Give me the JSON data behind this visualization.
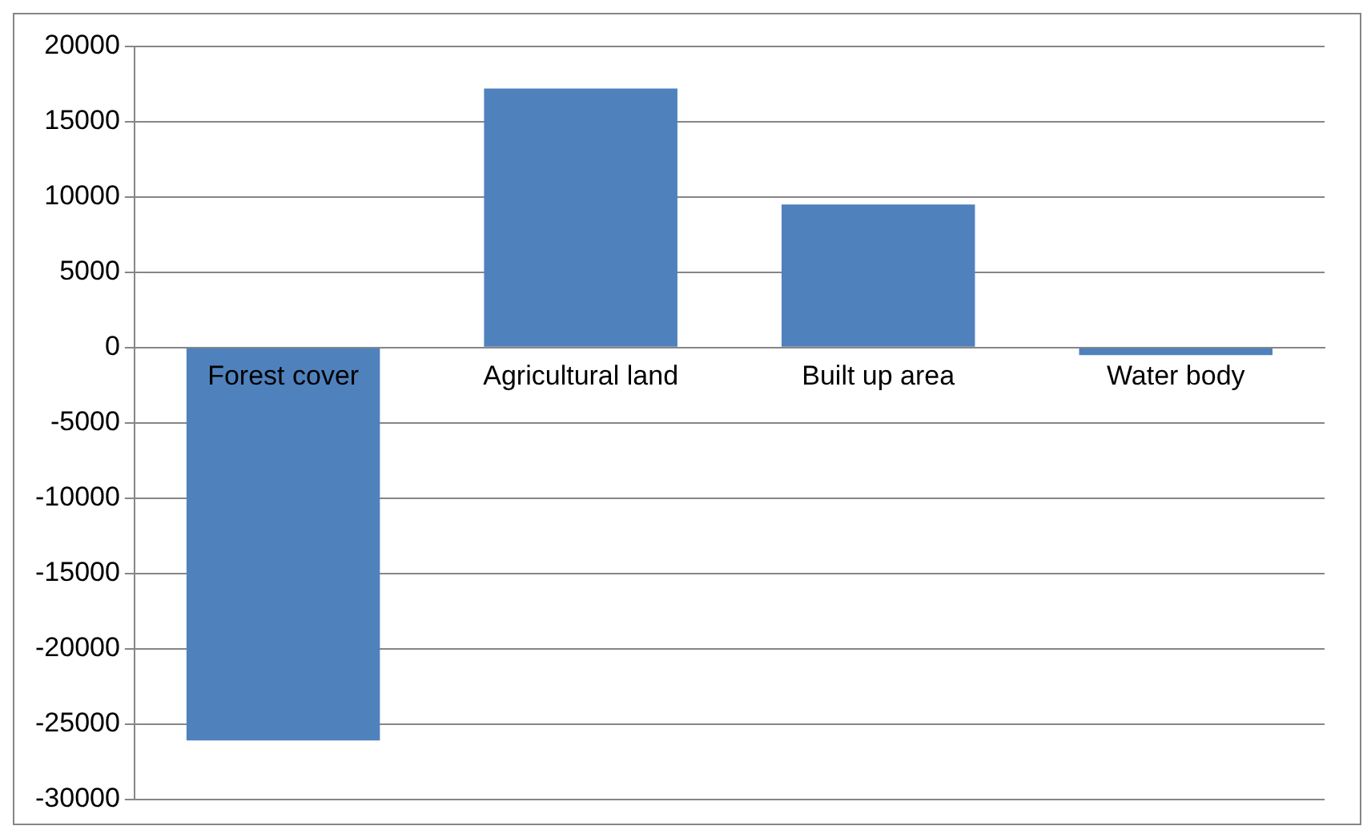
{
  "chart_data": {
    "type": "bar",
    "categories": [
      "Forest cover",
      "Agricultural land",
      "Built up area",
      "Water body"
    ],
    "values": [
      -26100,
      17200,
      9500,
      -500
    ],
    "color": "#4f81bd",
    "ylim": [
      -30000,
      20000
    ],
    "yticks": [
      -30000,
      -25000,
      -20000,
      -15000,
      -10000,
      -5000,
      0,
      5000,
      10000,
      15000,
      20000
    ],
    "grid": "y"
  }
}
